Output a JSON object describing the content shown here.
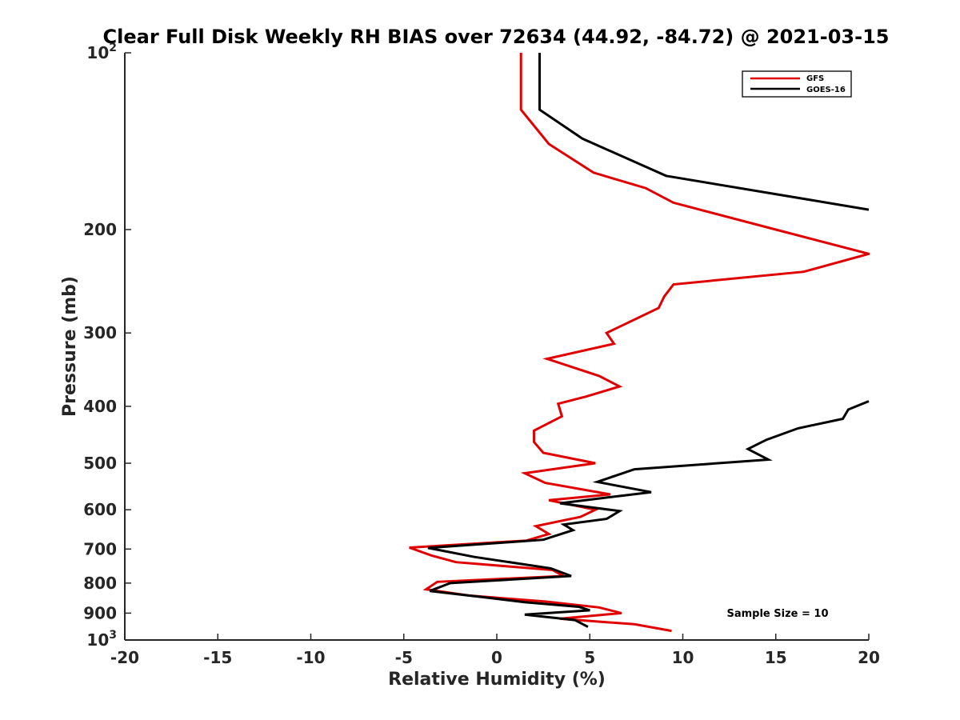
{
  "chart_data": {
    "type": "line",
    "title": "Clear Full Disk Weekly RH BIAS over 72634 (44.92, -84.72) @ 2021-03-15",
    "xlabel": "Relative Humidity (%)",
    "ylabel": "Pressure (mb)",
    "xlim": [
      -20,
      20
    ],
    "ylim": [
      100,
      1000
    ],
    "yscale": "log",
    "y_reversed": true,
    "x_ticks": [
      -20,
      -15,
      -10,
      -5,
      0,
      5,
      10,
      15,
      20
    ],
    "x_tick_labels": [
      "-20",
      "-15",
      "-10",
      "-5",
      "0",
      "5",
      "10",
      "15",
      "20"
    ],
    "y_ticks": [
      {
        "value": 100,
        "base": "10",
        "exp": "2"
      },
      {
        "value": 200,
        "label": "200"
      },
      {
        "value": 300,
        "label": "300"
      },
      {
        "value": 400,
        "label": "400"
      },
      {
        "value": 500,
        "label": "500"
      },
      {
        "value": 600,
        "label": "600"
      },
      {
        "value": 700,
        "label": "700"
      },
      {
        "value": 800,
        "label": "800"
      },
      {
        "value": 900,
        "label": "900"
      },
      {
        "value": 1000,
        "base": "10",
        "exp": "3"
      }
    ],
    "legend": {
      "position": "top-right"
    },
    "annotation": "Sample Size = 10",
    "series": [
      {
        "name": "GFS",
        "color": "#e00000",
        "points": [
          [
            1.3,
            100
          ],
          [
            1.3,
            125
          ],
          [
            2.8,
            143
          ],
          [
            5.2,
            160
          ],
          [
            8,
            170
          ],
          [
            9.5,
            180
          ],
          [
            15,
            200
          ],
          [
            20,
            220
          ],
          [
            16.5,
            236
          ],
          [
            9.5,
            248
          ],
          [
            9,
            260
          ],
          [
            8.7,
            272
          ],
          [
            5.9,
            300
          ],
          [
            6.3,
            313
          ],
          [
            2.7,
            332
          ],
          [
            5.5,
            355
          ],
          [
            6.6,
            370
          ],
          [
            4.8,
            385
          ],
          [
            3.3,
            396
          ],
          [
            3.5,
            416
          ],
          [
            2.0,
            440
          ],
          [
            2.0,
            460
          ],
          [
            2.5,
            480
          ],
          [
            5.3,
            500
          ],
          [
            1.5,
            520
          ],
          [
            2.6,
            540
          ],
          [
            6.1,
            565
          ],
          [
            2.8,
            578
          ],
          [
            5.3,
            600
          ],
          [
            4.5,
            617
          ],
          [
            2.1,
            640
          ],
          [
            2.8,
            660
          ],
          [
            1.6,
            677
          ],
          [
            -4.7,
            696
          ],
          [
            -3.5,
            718
          ],
          [
            -2.2,
            737
          ],
          [
            3.0,
            760
          ],
          [
            3.6,
            778
          ],
          [
            -3.2,
            796
          ],
          [
            -3.8,
            820
          ],
          [
            -1.5,
            840
          ],
          [
            2.6,
            860
          ],
          [
            5.5,
            880
          ],
          [
            6.7,
            900
          ],
          [
            3.4,
            920
          ],
          [
            7.4,
            940
          ],
          [
            9.4,
            965
          ]
        ]
      },
      {
        "name": "GOES-16",
        "color": "#000000",
        "points": [
          [
            2.3,
            100
          ],
          [
            2.3,
            125
          ],
          [
            4.6,
            140
          ],
          [
            9.1,
            162
          ],
          [
            20,
            185
          ],
          [
            null,
            null
          ],
          [
            20,
            392
          ],
          [
            18.9,
            405
          ],
          [
            18.6,
            420
          ],
          [
            16.2,
            436
          ],
          [
            14.5,
            456
          ],
          [
            13.5,
            473
          ],
          [
            14.6,
            493
          ],
          [
            7.4,
            512
          ],
          [
            5.4,
            538
          ],
          [
            8.3,
            560
          ],
          [
            3.4,
            585
          ],
          [
            6.6,
            603
          ],
          [
            5.9,
            622
          ],
          [
            3.6,
            636
          ],
          [
            4.1,
            650
          ],
          [
            2.5,
            675
          ],
          [
            -3.7,
            697
          ],
          [
            -1.2,
            722
          ],
          [
            2.9,
            755
          ],
          [
            4,
            778
          ],
          [
            -2.5,
            800
          ],
          [
            -3.6,
            825
          ],
          [
            -0.5,
            847
          ],
          [
            1.5,
            862
          ],
          [
            4.4,
            878
          ],
          [
            5.0,
            890
          ],
          [
            1.5,
            905
          ],
          [
            4.2,
            925
          ],
          [
            4.9,
            950
          ]
        ]
      }
    ]
  }
}
